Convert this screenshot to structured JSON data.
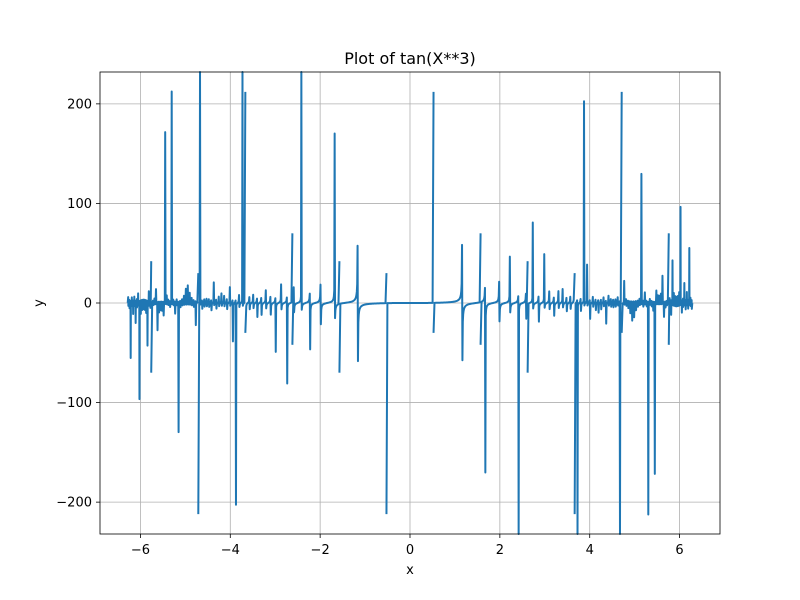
{
  "chart_data": {
    "type": "line",
    "title": "Plot of tan(X**3)",
    "xlabel": "x",
    "ylabel": "y",
    "xlim": [
      -6.9,
      6.9
    ],
    "ylim": [
      -232,
      232
    ],
    "xticks": [
      -6,
      -4,
      -2,
      0,
      2,
      4,
      6
    ],
    "xtick_labels": [
      "−6",
      "−4",
      "−2",
      "0",
      "2",
      "4",
      "6"
    ],
    "yticks": [
      -200,
      -100,
      0,
      100,
      200
    ],
    "ytick_labels": [
      "−200",
      "−100",
      "0",
      "100",
      "200"
    ],
    "grid": true,
    "series": [
      {
        "color": "#1f77b4",
        "function": "tan(x^3)",
        "x_range": [
          -6.283,
          6.283
        ],
        "asymptotes": [
          -5.76,
          -4.712,
          -3.665,
          -2.618,
          -1.571,
          -0.524,
          0.524,
          1.571,
          2.618,
          3.665,
          4.712,
          5.76
        ],
        "spike_values": [
          {
            "x": -5.76,
            "left": 42,
            "right": -70
          },
          {
            "x": -4.712,
            "left": 30,
            "right": -212
          },
          {
            "x": -3.665,
            "left": 212,
            "right": -30
          },
          {
            "x": -2.618,
            "left": 70,
            "right": -42
          },
          {
            "x": -1.571,
            "left": 42,
            "right": -70
          },
          {
            "x": -0.524,
            "left": 30,
            "right": -212
          },
          {
            "x": 0.524,
            "left": 212,
            "right": -30
          },
          {
            "x": 1.571,
            "left": 70,
            "right": -42
          },
          {
            "x": 2.618,
            "left": 42,
            "right": -70
          },
          {
            "x": 3.665,
            "left": 30,
            "right": -212
          },
          {
            "x": 4.712,
            "left": 212,
            "right": -30
          },
          {
            "x": 5.76,
            "left": 70,
            "right": -42
          }
        ]
      }
    ]
  }
}
